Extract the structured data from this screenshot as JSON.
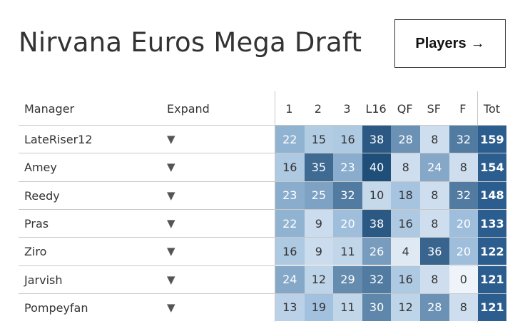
{
  "title": "Nirvana Euros Mega Draft",
  "players_button": {
    "label": "Players",
    "arrow": "→"
  },
  "headers": {
    "manager": "Manager",
    "expand": "Expand",
    "rounds": [
      "1",
      "2",
      "3",
      "L16",
      "QF",
      "SF",
      "F",
      "Tot"
    ]
  },
  "rows": [
    {
      "manager": "LateRiser12",
      "expand": "▼",
      "scores": [
        22,
        15,
        16,
        38,
        28,
        8,
        32
      ],
      "total": 159
    },
    {
      "manager": "Amey",
      "expand": "▼",
      "scores": [
        16,
        35,
        23,
        40,
        8,
        24,
        8
      ],
      "total": 154
    },
    {
      "manager": "Reedy",
      "expand": "▼",
      "scores": [
        23,
        25,
        32,
        10,
        18,
        8,
        32
      ],
      "total": 148
    },
    {
      "manager": "Pras",
      "expand": "▼",
      "scores": [
        22,
        9,
        20,
        38,
        16,
        8,
        20
      ],
      "total": 133
    },
    {
      "manager": "Ziro",
      "expand": "▼",
      "scores": [
        16,
        9,
        11,
        26,
        4,
        36,
        20
      ],
      "total": 122
    },
    {
      "manager": "Jarvish",
      "expand": "▼",
      "scores": [
        24,
        12,
        29,
        32,
        16,
        8,
        0
      ],
      "total": 121
    },
    {
      "manager": "Pompeyfan",
      "expand": "▼",
      "scores": [
        13,
        19,
        11,
        30,
        12,
        28,
        8
      ],
      "total": 121
    }
  ],
  "colors": {
    "low": "#ffffff",
    "high": "#1f4e79",
    "total_bg": "#2c5d8f"
  }
}
